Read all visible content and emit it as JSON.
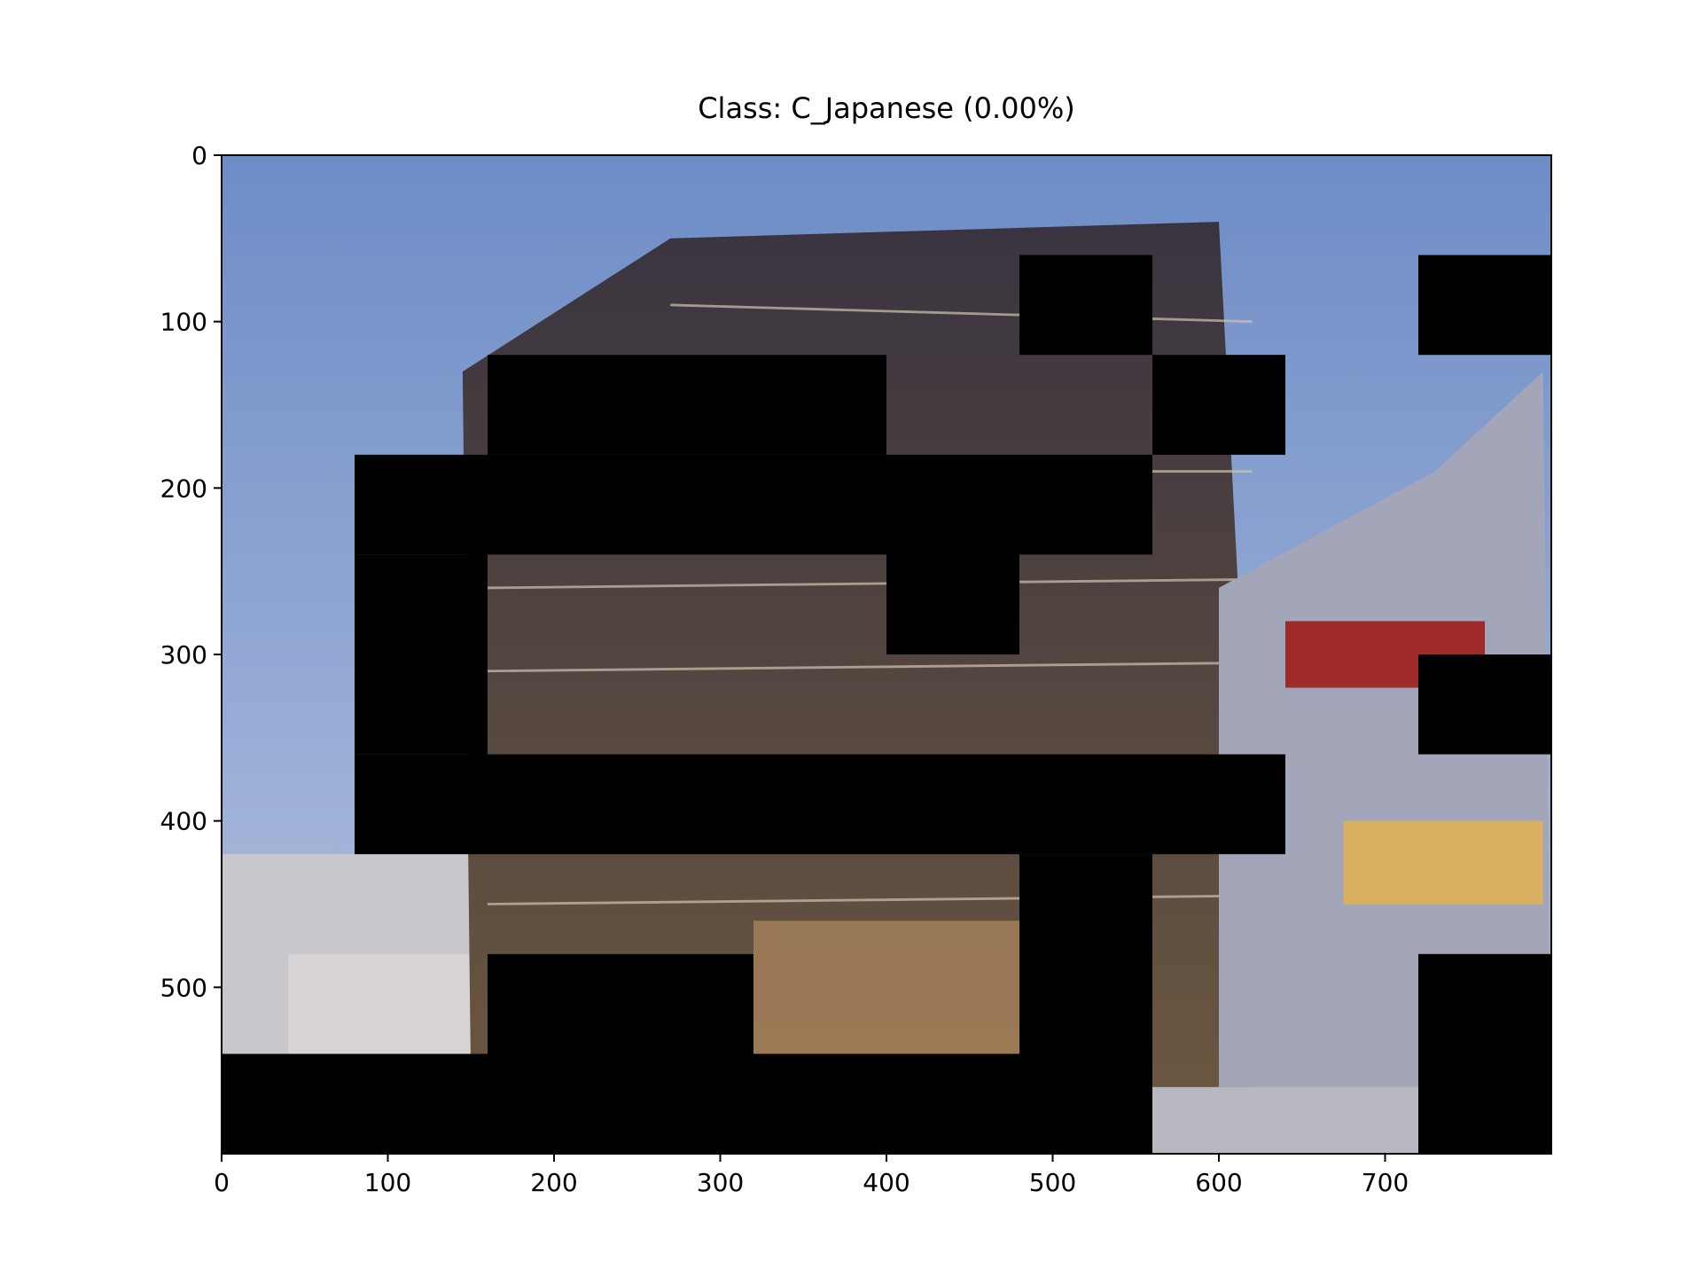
{
  "chart_data": {
    "type": "image",
    "title": "Class: C_Japanese (0.00%)",
    "xlim": [
      0,
      800
    ],
    "ylim": [
      600,
      0
    ],
    "xticks": [
      0,
      100,
      200,
      300,
      400,
      500,
      600,
      700
    ],
    "yticks": [
      0,
      100,
      200,
      300,
      400,
      500
    ]
  }
}
